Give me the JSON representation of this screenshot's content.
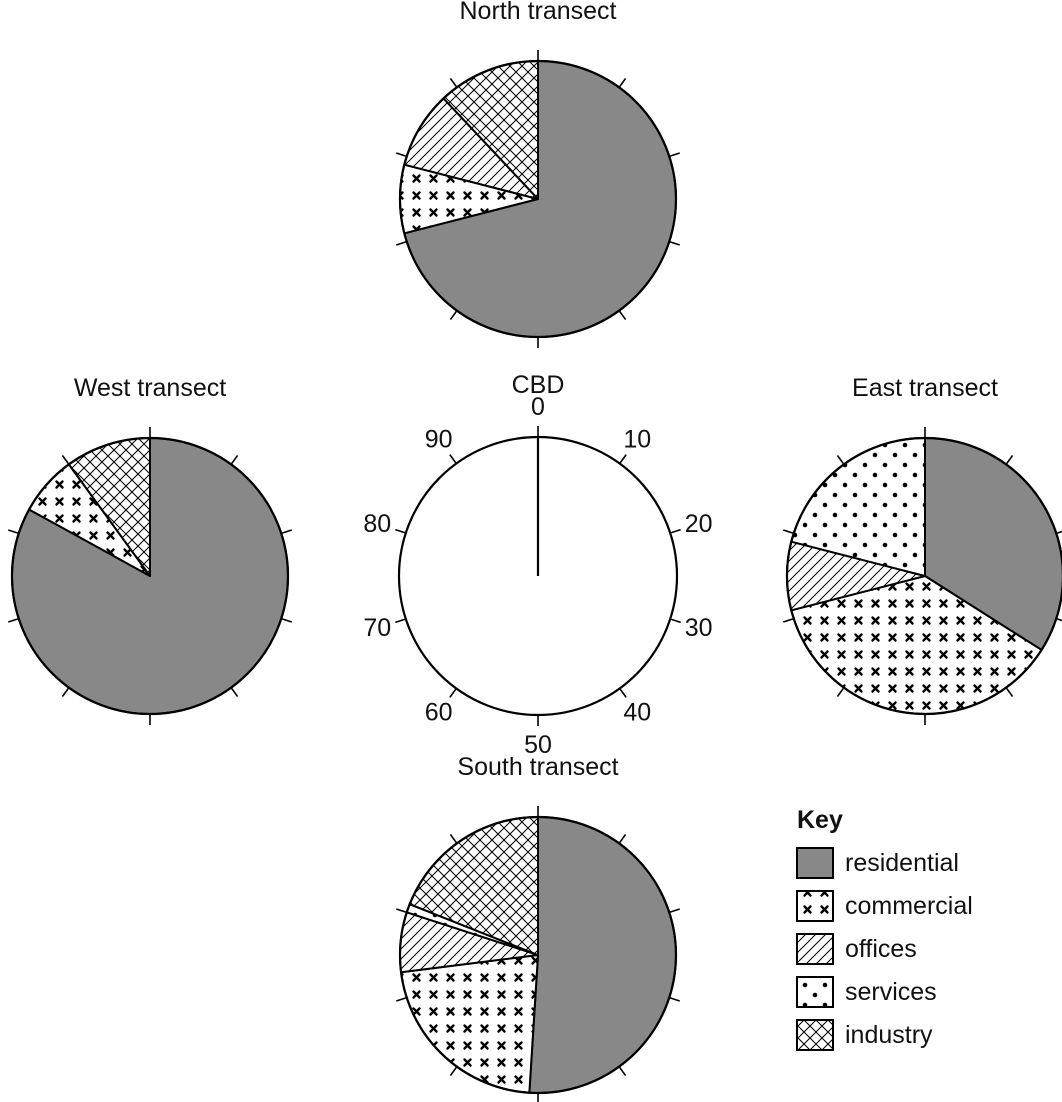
{
  "chart_data": [
    {
      "type": "pie",
      "title": "North transect",
      "slices": [
        {
          "category": "residential",
          "start": 0,
          "end": 71
        },
        {
          "category": "commercial",
          "start": 71,
          "end": 79
        },
        {
          "category": "offices",
          "start": 79,
          "end": 88
        },
        {
          "category": "industry",
          "start": 88,
          "end": 100
        }
      ]
    },
    {
      "type": "pie",
      "title": "West transect",
      "slices": [
        {
          "category": "residential",
          "start": 0,
          "end": 83
        },
        {
          "category": "commercial",
          "start": 83,
          "end": 90
        },
        {
          "category": "industry",
          "start": 90,
          "end": 100
        }
      ]
    },
    {
      "type": "pie",
      "title": "East transect",
      "slices": [
        {
          "category": "residential",
          "start": 0,
          "end": 34
        },
        {
          "category": "commercial",
          "start": 34,
          "end": 71
        },
        {
          "category": "offices",
          "start": 71,
          "end": 79
        },
        {
          "category": "services",
          "start": 79,
          "end": 100
        }
      ]
    },
    {
      "type": "pie",
      "title": "South transect",
      "slices": [
        {
          "category": "residential",
          "start": 0,
          "end": 51
        },
        {
          "category": "commercial",
          "start": 51,
          "end": 73
        },
        {
          "category": "offices",
          "start": 73,
          "end": 80
        },
        {
          "category": "services",
          "start": 80,
          "end": 81
        },
        {
          "category": "industry",
          "start": 81,
          "end": 100
        }
      ]
    }
  ],
  "scale_dial": {
    "label": "CBD",
    "ticks": [
      "0",
      "10",
      "20",
      "30",
      "40",
      "50",
      "60",
      "70",
      "80",
      "90"
    ]
  },
  "legend": {
    "title": "Key",
    "items": [
      {
        "key": "residential",
        "label": "residential"
      },
      {
        "key": "commercial",
        "label": "commercial"
      },
      {
        "key": "offices",
        "label": "offices"
      },
      {
        "key": "services",
        "label": "services"
      },
      {
        "key": "industry",
        "label": "industry"
      }
    ]
  },
  "colors": {
    "residential": "#888888",
    "outline": "#000000",
    "background": "#ffffff"
  }
}
